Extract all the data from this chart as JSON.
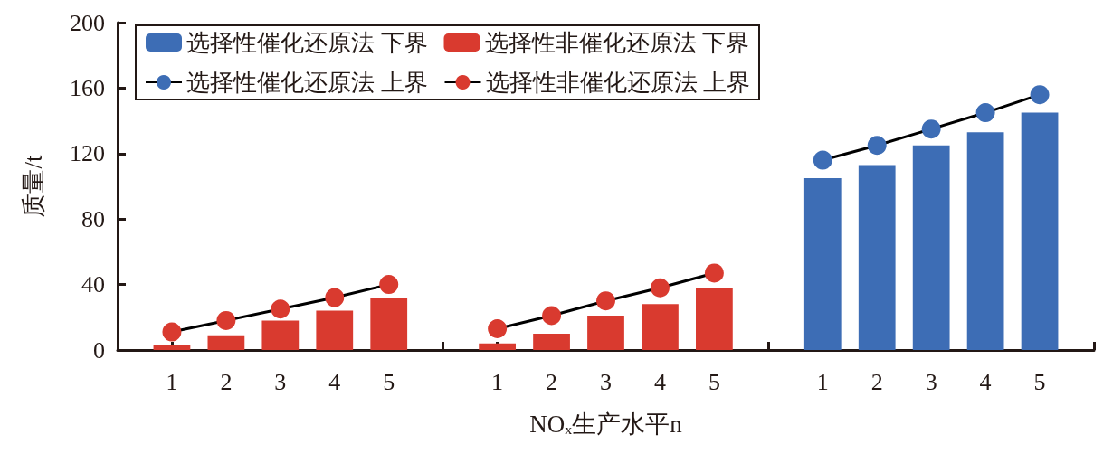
{
  "chart_data": {
    "type": "bar",
    "xlabel": "NOₓ生产水平n",
    "ylabel": "质量/t",
    "categories": [
      null,
      "1",
      "2",
      "3",
      "4",
      "5",
      null,
      "1",
      "2",
      "3",
      "4",
      "5",
      null,
      "1",
      "2",
      "3",
      "4",
      "5",
      null
    ],
    "series": [
      {
        "name": "选择性催化还原法 下界",
        "color": "#3d6db5",
        "values": [
          null,
          null,
          null,
          null,
          null,
          null,
          null,
          null,
          null,
          null,
          null,
          null,
          null,
          105,
          113,
          125,
          133,
          145,
          null
        ]
      },
      {
        "name": "选择性非催化还原法 下界",
        "color": "#d93a2f",
        "values": [
          null,
          3,
          9,
          18,
          24,
          32,
          null,
          4,
          10,
          21,
          28,
          38,
          null,
          null,
          null,
          null,
          null,
          null,
          null
        ]
      },
      {
        "name": "选择性催化还原法 上界",
        "type": "line",
        "color": "#3d6db5",
        "values": [
          null,
          null,
          null,
          null,
          null,
          null,
          null,
          null,
          null,
          null,
          null,
          null,
          null,
          116,
          125,
          135,
          145,
          156,
          null
        ]
      },
      {
        "name": "选择性非催化还原法 上界",
        "type": "line",
        "color": "#d93a2f",
        "values": [
          null,
          11,
          18,
          25,
          32,
          40,
          null,
          13,
          21,
          30,
          38,
          47,
          null,
          null,
          null,
          null,
          null,
          null,
          null
        ]
      }
    ],
    "ylim": [
      0,
      200
    ],
    "yticks": [
      0,
      40,
      80,
      120,
      160,
      200
    ],
    "grid": false,
    "legend": "top left",
    "marker": "circle",
    "line_style": "solid"
  }
}
